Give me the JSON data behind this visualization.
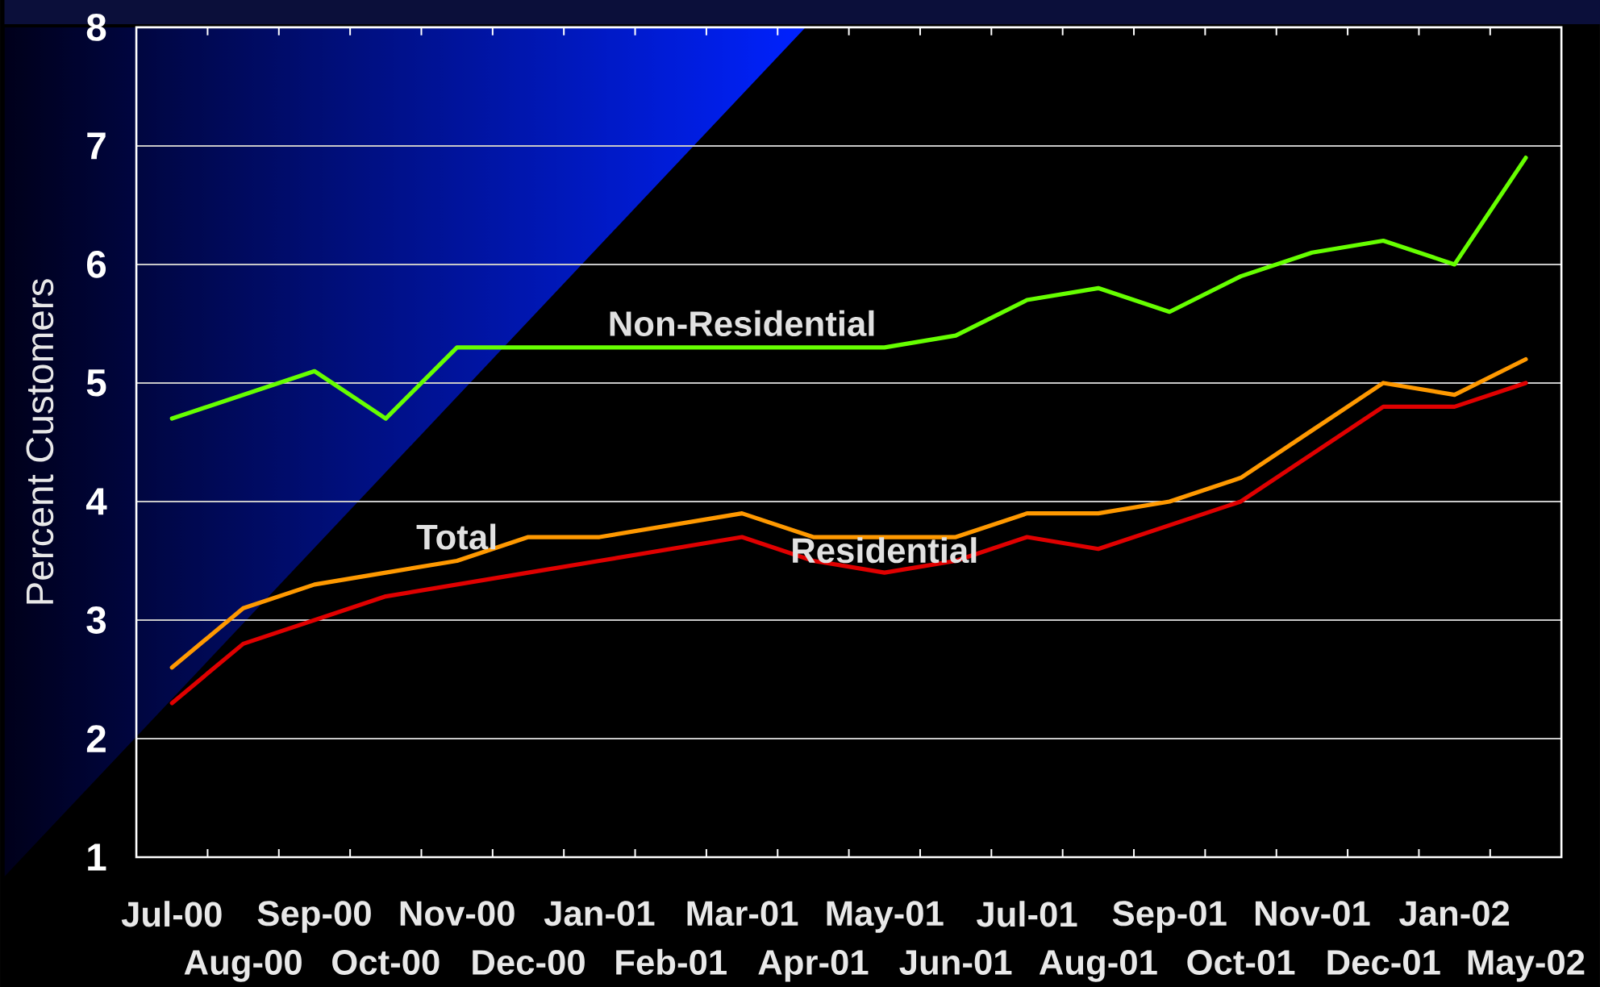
{
  "chart_data": {
    "type": "line",
    "ylabel": "Percent Customers",
    "categories": [
      "Jul-00",
      "Aug-00",
      "Sep-00",
      "Oct-00",
      "Nov-00",
      "Dec-00",
      "Jan-01",
      "Feb-01",
      "Mar-01",
      "Apr-01",
      "May-01",
      "Jun-01",
      "Jul-01",
      "Aug-01",
      "Sep-01",
      "Oct-01",
      "Nov-01",
      "Dec-01",
      "Jan-02",
      "May-02"
    ],
    "ylim": [
      1,
      8
    ],
    "yticks": [
      1,
      2,
      3,
      4,
      5,
      6,
      7,
      8
    ],
    "grid": "y",
    "series": [
      {
        "name": "Non-Residential",
        "color": "#66ff00",
        "values": [
          4.7,
          4.9,
          5.1,
          4.7,
          5.3,
          5.3,
          5.3,
          5.3,
          5.3,
          5.3,
          5.3,
          5.4,
          5.7,
          5.8,
          5.6,
          5.9,
          6.1,
          6.2,
          6.0,
          6.9
        ]
      },
      {
        "name": "Total",
        "color": "#ff9900",
        "values": [
          2.6,
          3.1,
          3.3,
          3.4,
          3.5,
          3.7,
          3.7,
          3.8,
          3.9,
          3.7,
          3.7,
          3.7,
          3.9,
          3.9,
          4.0,
          4.2,
          4.6,
          5.0,
          4.9,
          5.2
        ]
      },
      {
        "name": "Residential",
        "color": "#e00000",
        "values": [
          2.3,
          2.8,
          3.0,
          3.2,
          3.3,
          3.4,
          3.5,
          3.6,
          3.7,
          3.5,
          3.4,
          3.5,
          3.7,
          3.6,
          3.8,
          4.0,
          4.4,
          4.8,
          4.8,
          5.0
        ]
      }
    ]
  }
}
